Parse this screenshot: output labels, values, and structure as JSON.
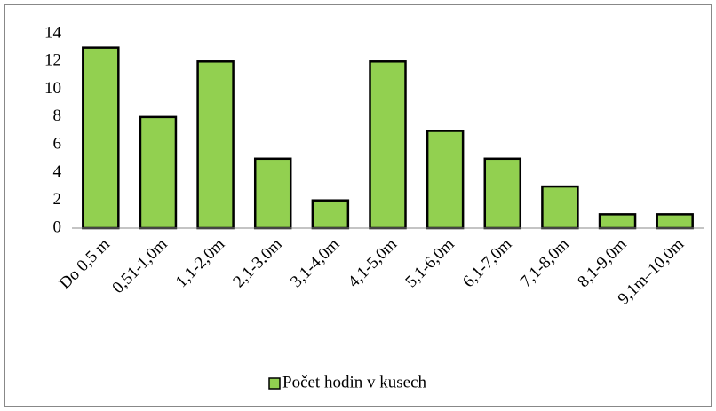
{
  "chart_data": {
    "type": "bar",
    "categories": [
      "Do 0,5 m",
      "0,51-1,0m",
      "1,1-2,0m",
      "2,1-3,0m",
      "3,1-4,0m",
      "4,1-5,0m",
      "5,1-6,0m",
      "6,1-7,0m",
      "7,1-8,0m",
      "8,1-9,0m",
      "9,1m–10,0m"
    ],
    "series": [
      {
        "name": "Počet hodin v kusech",
        "color": "#92d050",
        "values": [
          13,
          8,
          12,
          5,
          2,
          12,
          7,
          5,
          3,
          1,
          1
        ]
      }
    ],
    "ylim": [
      0,
      14
    ],
    "yticks": [
      0,
      2,
      4,
      6,
      8,
      10,
      12,
      14
    ],
    "grid": false,
    "legend": "bottom"
  }
}
